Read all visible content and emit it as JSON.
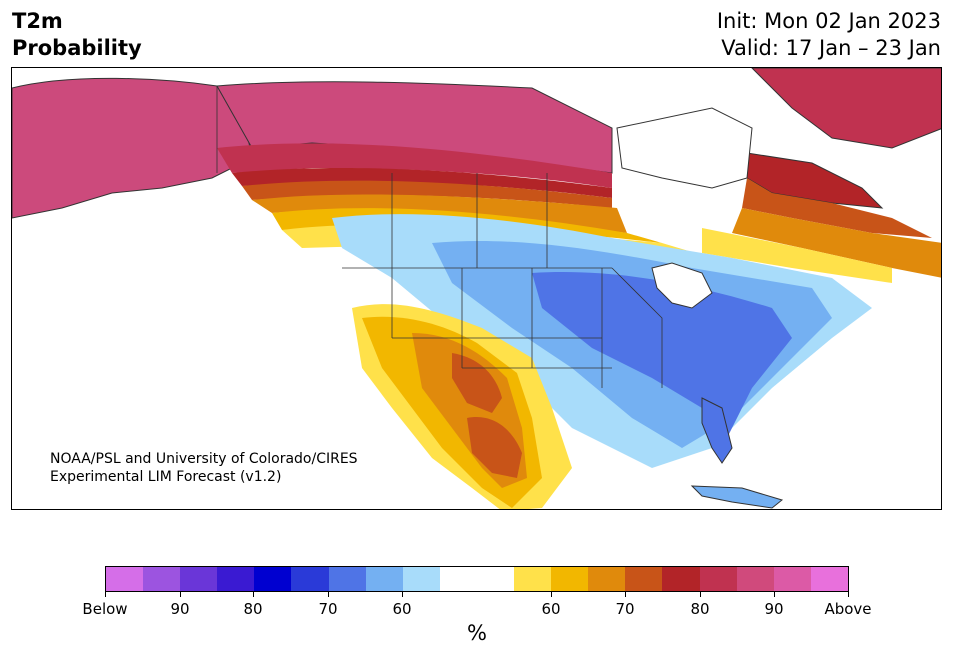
{
  "header": {
    "title_line1": "T2m",
    "title_line2": "Probability",
    "init": "Init: Mon 02 Jan 2023",
    "valid": "Valid: 17 Jan – 23 Jan"
  },
  "map": {
    "credit_line1": "NOAA/PSL and University of Colorado/CIRES",
    "credit_line2": "Experimental LIM Forecast (v1.2)"
  },
  "colorbar": {
    "colors": [
      "#d56ee8",
      "#9c54e0",
      "#6a36d8",
      "#3a1ad2",
      "#0000d0",
      "#2a3ad8",
      "#4f74e6",
      "#74b0f2",
      "#a8dcfa",
      "#ffffff",
      "#ffffff",
      "#ffe14a",
      "#f2b700",
      "#e08a0c",
      "#c85418",
      "#b22428",
      "#c03250",
      "#d04a7c",
      "#dc5aa6",
      "#e870dc"
    ],
    "labels": [
      "Below",
      "90",
      "80",
      "70",
      "60",
      "60",
      "70",
      "80",
      "90",
      "Above"
    ],
    "unit": "%"
  }
}
